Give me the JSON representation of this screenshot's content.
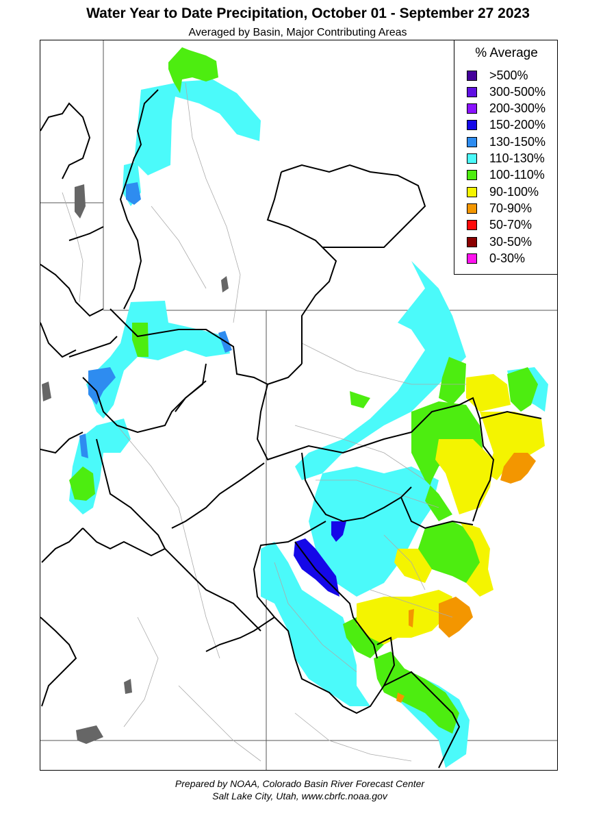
{
  "title": "Water Year to Date Precipitation, October 01  - September 27 2023",
  "subtitle": "Averaged by Basin, Major Contributing Areas",
  "legend": {
    "title": "% Average",
    "items": [
      {
        "label": ">500%",
        "color": "#44009a"
      },
      {
        "label": "300-500%",
        "color": "#5f10e2"
      },
      {
        "label": "200-300%",
        "color": "#8a12ff"
      },
      {
        "label": "150-200%",
        "color": "#1508e8"
      },
      {
        "label": "130-150%",
        "color": "#2e8cf0"
      },
      {
        "label": "110-130%",
        "color": "#4bfafa"
      },
      {
        "label": "100-110%",
        "color": "#4ded10"
      },
      {
        "label": "90-100%",
        "color": "#f4f400"
      },
      {
        "label": "70-90%",
        "color": "#f39600"
      },
      {
        "label": "50-70%",
        "color": "#ff0a0a"
      },
      {
        "label": "30-50%",
        "color": "#8a0000"
      },
      {
        "label": "0-30%",
        "color": "#ff12ee"
      }
    ]
  },
  "footer": {
    "line1": "Prepared by NOAA, Colorado Basin River Forecast Center",
    "line2": "Salt Lake City, Utah, www.cbrfc.noaa.gov"
  }
}
